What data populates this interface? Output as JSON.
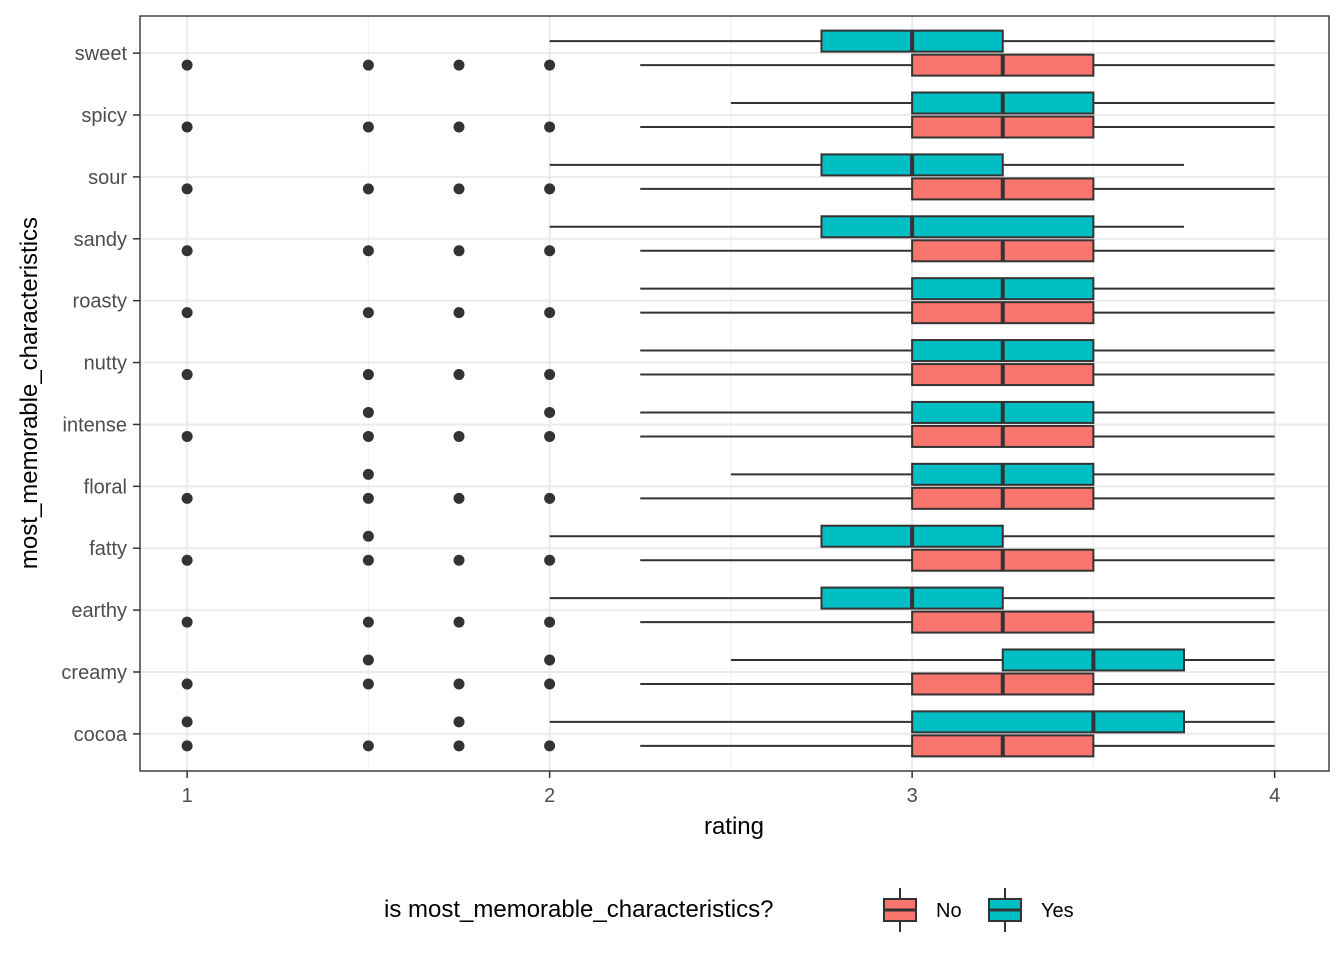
{
  "chart_data": {
    "type": "boxplot",
    "orientation": "horizontal",
    "xlabel": "rating",
    "ylabel": "most_memorable_characteristics",
    "xlim": [
      0.87,
      4.15
    ],
    "x_ticks": [
      1,
      2,
      3,
      4
    ],
    "grid": true,
    "legend_position": "bottom",
    "legend_title": "is most_memorable_characteristics?",
    "groups": [
      {
        "name": "No",
        "color": "#F8766D"
      },
      {
        "name": "Yes",
        "color": "#00BFC4"
      }
    ],
    "categories": [
      "sweet",
      "spicy",
      "sour",
      "sandy",
      "roasty",
      "nutty",
      "intense",
      "floral",
      "fatty",
      "earthy",
      "creamy",
      "cocoa"
    ],
    "boxes": {
      "sweet": {
        "No": {
          "whisker_low": 2.25,
          "q1": 3,
          "median": 3.25,
          "q3": 3.5,
          "whisker_high": 4,
          "outliers": [
            1,
            1.5,
            1.75,
            2
          ]
        },
        "Yes": {
          "whisker_low": 2,
          "q1": 2.75,
          "median": 3,
          "q3": 3.25,
          "whisker_high": 4,
          "outliers": []
        }
      },
      "spicy": {
        "No": {
          "whisker_low": 2.25,
          "q1": 3,
          "median": 3.25,
          "q3": 3.5,
          "whisker_high": 4,
          "outliers": [
            1,
            1.5,
            1.75,
            2
          ]
        },
        "Yes": {
          "whisker_low": 2.5,
          "q1": 3,
          "median": 3.25,
          "q3": 3.5,
          "whisker_high": 4,
          "outliers": []
        }
      },
      "sour": {
        "No": {
          "whisker_low": 2.25,
          "q1": 3,
          "median": 3.25,
          "q3": 3.5,
          "whisker_high": 4,
          "outliers": [
            1,
            1.5,
            1.75,
            2
          ]
        },
        "Yes": {
          "whisker_low": 2,
          "q1": 2.75,
          "median": 3,
          "q3": 3.25,
          "whisker_high": 3.75,
          "outliers": []
        }
      },
      "sandy": {
        "No": {
          "whisker_low": 2.25,
          "q1": 3,
          "median": 3.25,
          "q3": 3.5,
          "whisker_high": 4,
          "outliers": [
            1,
            1.5,
            1.75,
            2
          ]
        },
        "Yes": {
          "whisker_low": 2,
          "q1": 2.75,
          "median": 3,
          "q3": 3.5,
          "whisker_high": 3.75,
          "outliers": []
        }
      },
      "roasty": {
        "No": {
          "whisker_low": 2.25,
          "q1": 3,
          "median": 3.25,
          "q3": 3.5,
          "whisker_high": 4,
          "outliers": [
            1,
            1.5,
            1.75,
            2
          ]
        },
        "Yes": {
          "whisker_low": 2.25,
          "q1": 3,
          "median": 3.25,
          "q3": 3.5,
          "whisker_high": 4,
          "outliers": []
        }
      },
      "nutty": {
        "No": {
          "whisker_low": 2.25,
          "q1": 3,
          "median": 3.25,
          "q3": 3.5,
          "whisker_high": 4,
          "outliers": [
            1,
            1.5,
            1.75,
            2
          ]
        },
        "Yes": {
          "whisker_low": 2.25,
          "q1": 3,
          "median": 3.25,
          "q3": 3.5,
          "whisker_high": 4,
          "outliers": []
        }
      },
      "intense": {
        "No": {
          "whisker_low": 2.25,
          "q1": 3,
          "median": 3.25,
          "q3": 3.5,
          "whisker_high": 4,
          "outliers": [
            1,
            1.5,
            1.75,
            2
          ]
        },
        "Yes": {
          "whisker_low": 2.25,
          "q1": 3,
          "median": 3.25,
          "q3": 3.5,
          "whisker_high": 4,
          "outliers": [
            1.5,
            2
          ]
        }
      },
      "floral": {
        "No": {
          "whisker_low": 2.25,
          "q1": 3,
          "median": 3.25,
          "q3": 3.5,
          "whisker_high": 4,
          "outliers": [
            1,
            1.5,
            1.75,
            2
          ]
        },
        "Yes": {
          "whisker_low": 2.5,
          "q1": 3,
          "median": 3.25,
          "q3": 3.5,
          "whisker_high": 4,
          "outliers": [
            1.5
          ]
        }
      },
      "fatty": {
        "No": {
          "whisker_low": 2.25,
          "q1": 3,
          "median": 3.25,
          "q3": 3.5,
          "whisker_high": 4,
          "outliers": [
            1,
            1.5,
            1.75,
            2
          ]
        },
        "Yes": {
          "whisker_low": 2,
          "q1": 2.75,
          "median": 3,
          "q3": 3.25,
          "whisker_high": 4,
          "outliers": [
            1.5
          ]
        }
      },
      "earthy": {
        "No": {
          "whisker_low": 2.25,
          "q1": 3,
          "median": 3.25,
          "q3": 3.5,
          "whisker_high": 4,
          "outliers": [
            1,
            1.5,
            1.75,
            2
          ]
        },
        "Yes": {
          "whisker_low": 2,
          "q1": 2.75,
          "median": 3,
          "q3": 3.25,
          "whisker_high": 4,
          "outliers": []
        }
      },
      "creamy": {
        "No": {
          "whisker_low": 2.25,
          "q1": 3,
          "median": 3.25,
          "q3": 3.5,
          "whisker_high": 4,
          "outliers": [
            1,
            1.5,
            1.75,
            2
          ]
        },
        "Yes": {
          "whisker_low": 2.5,
          "q1": 3.25,
          "median": 3.5,
          "q3": 3.75,
          "whisker_high": 4,
          "outliers": [
            1.5,
            2
          ]
        }
      },
      "cocoa": {
        "No": {
          "whisker_low": 2.25,
          "q1": 3,
          "median": 3.25,
          "q3": 3.5,
          "whisker_high": 4,
          "outliers": [
            1,
            1.5,
            1.75,
            2
          ]
        },
        "Yes": {
          "whisker_low": 2,
          "q1": 3,
          "median": 3.5,
          "q3": 3.75,
          "whisker_high": 4,
          "outliers": [
            1,
            1.75
          ]
        }
      }
    }
  }
}
